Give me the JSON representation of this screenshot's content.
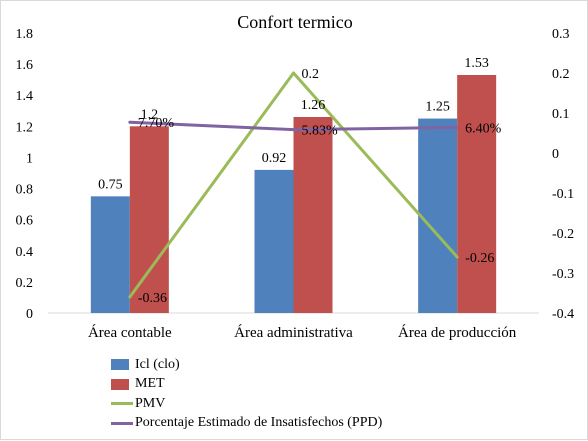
{
  "chart_data": {
    "type": "bar",
    "title": "Confort termico",
    "categories": [
      "Área contable",
      "Área administrativa",
      "Área de producción"
    ],
    "y_left": {
      "min": 0,
      "max": 1.8,
      "step": 0.2,
      "ticks": [
        "0",
        "0.2",
        "0.4",
        "0.6",
        "0.8",
        "1",
        "1.2",
        "1.4",
        "1.6",
        "1.8"
      ]
    },
    "y_right": {
      "min": -0.4,
      "max": 0.3,
      "step": 0.1,
      "ticks": [
        "-0.4",
        "-0.3",
        "-0.2",
        "-0.1",
        "0",
        "0.1",
        "0.2",
        "0.3"
      ]
    },
    "grid": false,
    "legend_position": "bottom",
    "series": [
      {
        "name": "Icl (clo)",
        "kind": "bar",
        "axis": "left",
        "color": "#4f81bd",
        "values": [
          0.75,
          0.92,
          1.25
        ],
        "labels": [
          "0.75",
          "0.92",
          "1.25"
        ]
      },
      {
        "name": "MET",
        "kind": "bar",
        "axis": "left",
        "color": "#c0504d",
        "values": [
          1.2,
          1.26,
          1.53
        ],
        "labels": [
          "1.2",
          "1.26",
          "1.53"
        ]
      },
      {
        "name": "PMV",
        "kind": "line",
        "axis": "right",
        "color": "#9bbb59",
        "values": [
          -0.36,
          0.2,
          -0.26
        ],
        "labels": [
          "-0.36",
          "0.2",
          "-0.26"
        ]
      },
      {
        "name": "Porcentaje Estimado de Insatisfechos (PPD)",
        "kind": "line",
        "axis": "right",
        "color": "#8064a2",
        "values": [
          0.077,
          0.0583,
          0.064
        ],
        "labels": [
          "7.70%",
          "5.83%",
          "6.40%"
        ]
      }
    ]
  }
}
